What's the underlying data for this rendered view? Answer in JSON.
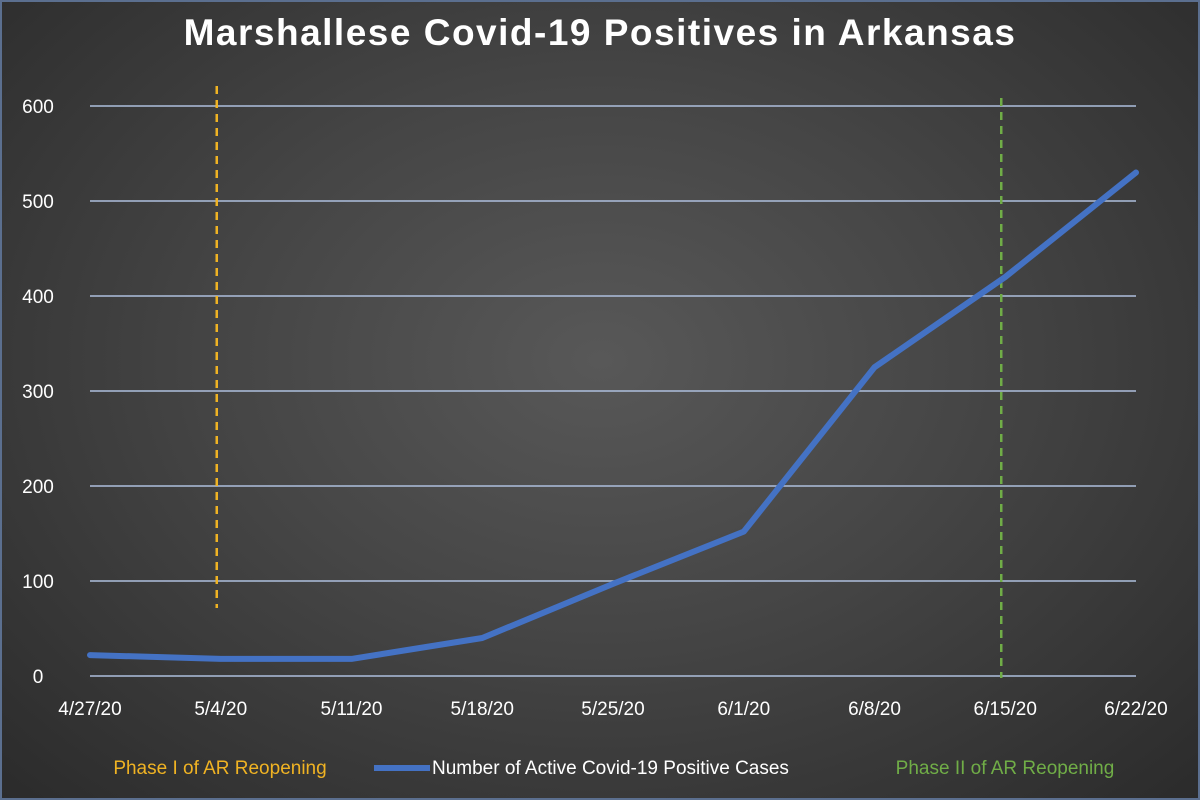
{
  "chart_data": {
    "type": "line",
    "title": "Marshallese Covid-19 Positives in Arkansas",
    "x": [
      "4/27/20",
      "5/4/20",
      "5/11/20",
      "5/18/20",
      "5/25/20",
      "6/1/20",
      "6/8/20",
      "6/15/20",
      "6/22/20"
    ],
    "series": [
      {
        "name": "Number of Active Covid-19 Positive Cases",
        "values": [
          22,
          18,
          18,
          40,
          97,
          152,
          325,
          420,
          530
        ],
        "color": "#4472c4"
      }
    ],
    "ylim": [
      0,
      600
    ],
    "yticks": [
      "0",
      "100",
      "200",
      "300",
      "400",
      "500",
      "600"
    ],
    "grid": true,
    "markers": [
      {
        "label": "Phase I of AR Reopening",
        "at": "5/4/20",
        "color": "#f0b323",
        "style": "dashed"
      },
      {
        "label": "Phase II of AR Reopening",
        "at": "6/15/20",
        "color": "#70ad47",
        "style": "dashed"
      }
    ],
    "legend_position": "bottom",
    "colors": {
      "grid": "#aebfdd",
      "text": "#ffffff"
    }
  }
}
